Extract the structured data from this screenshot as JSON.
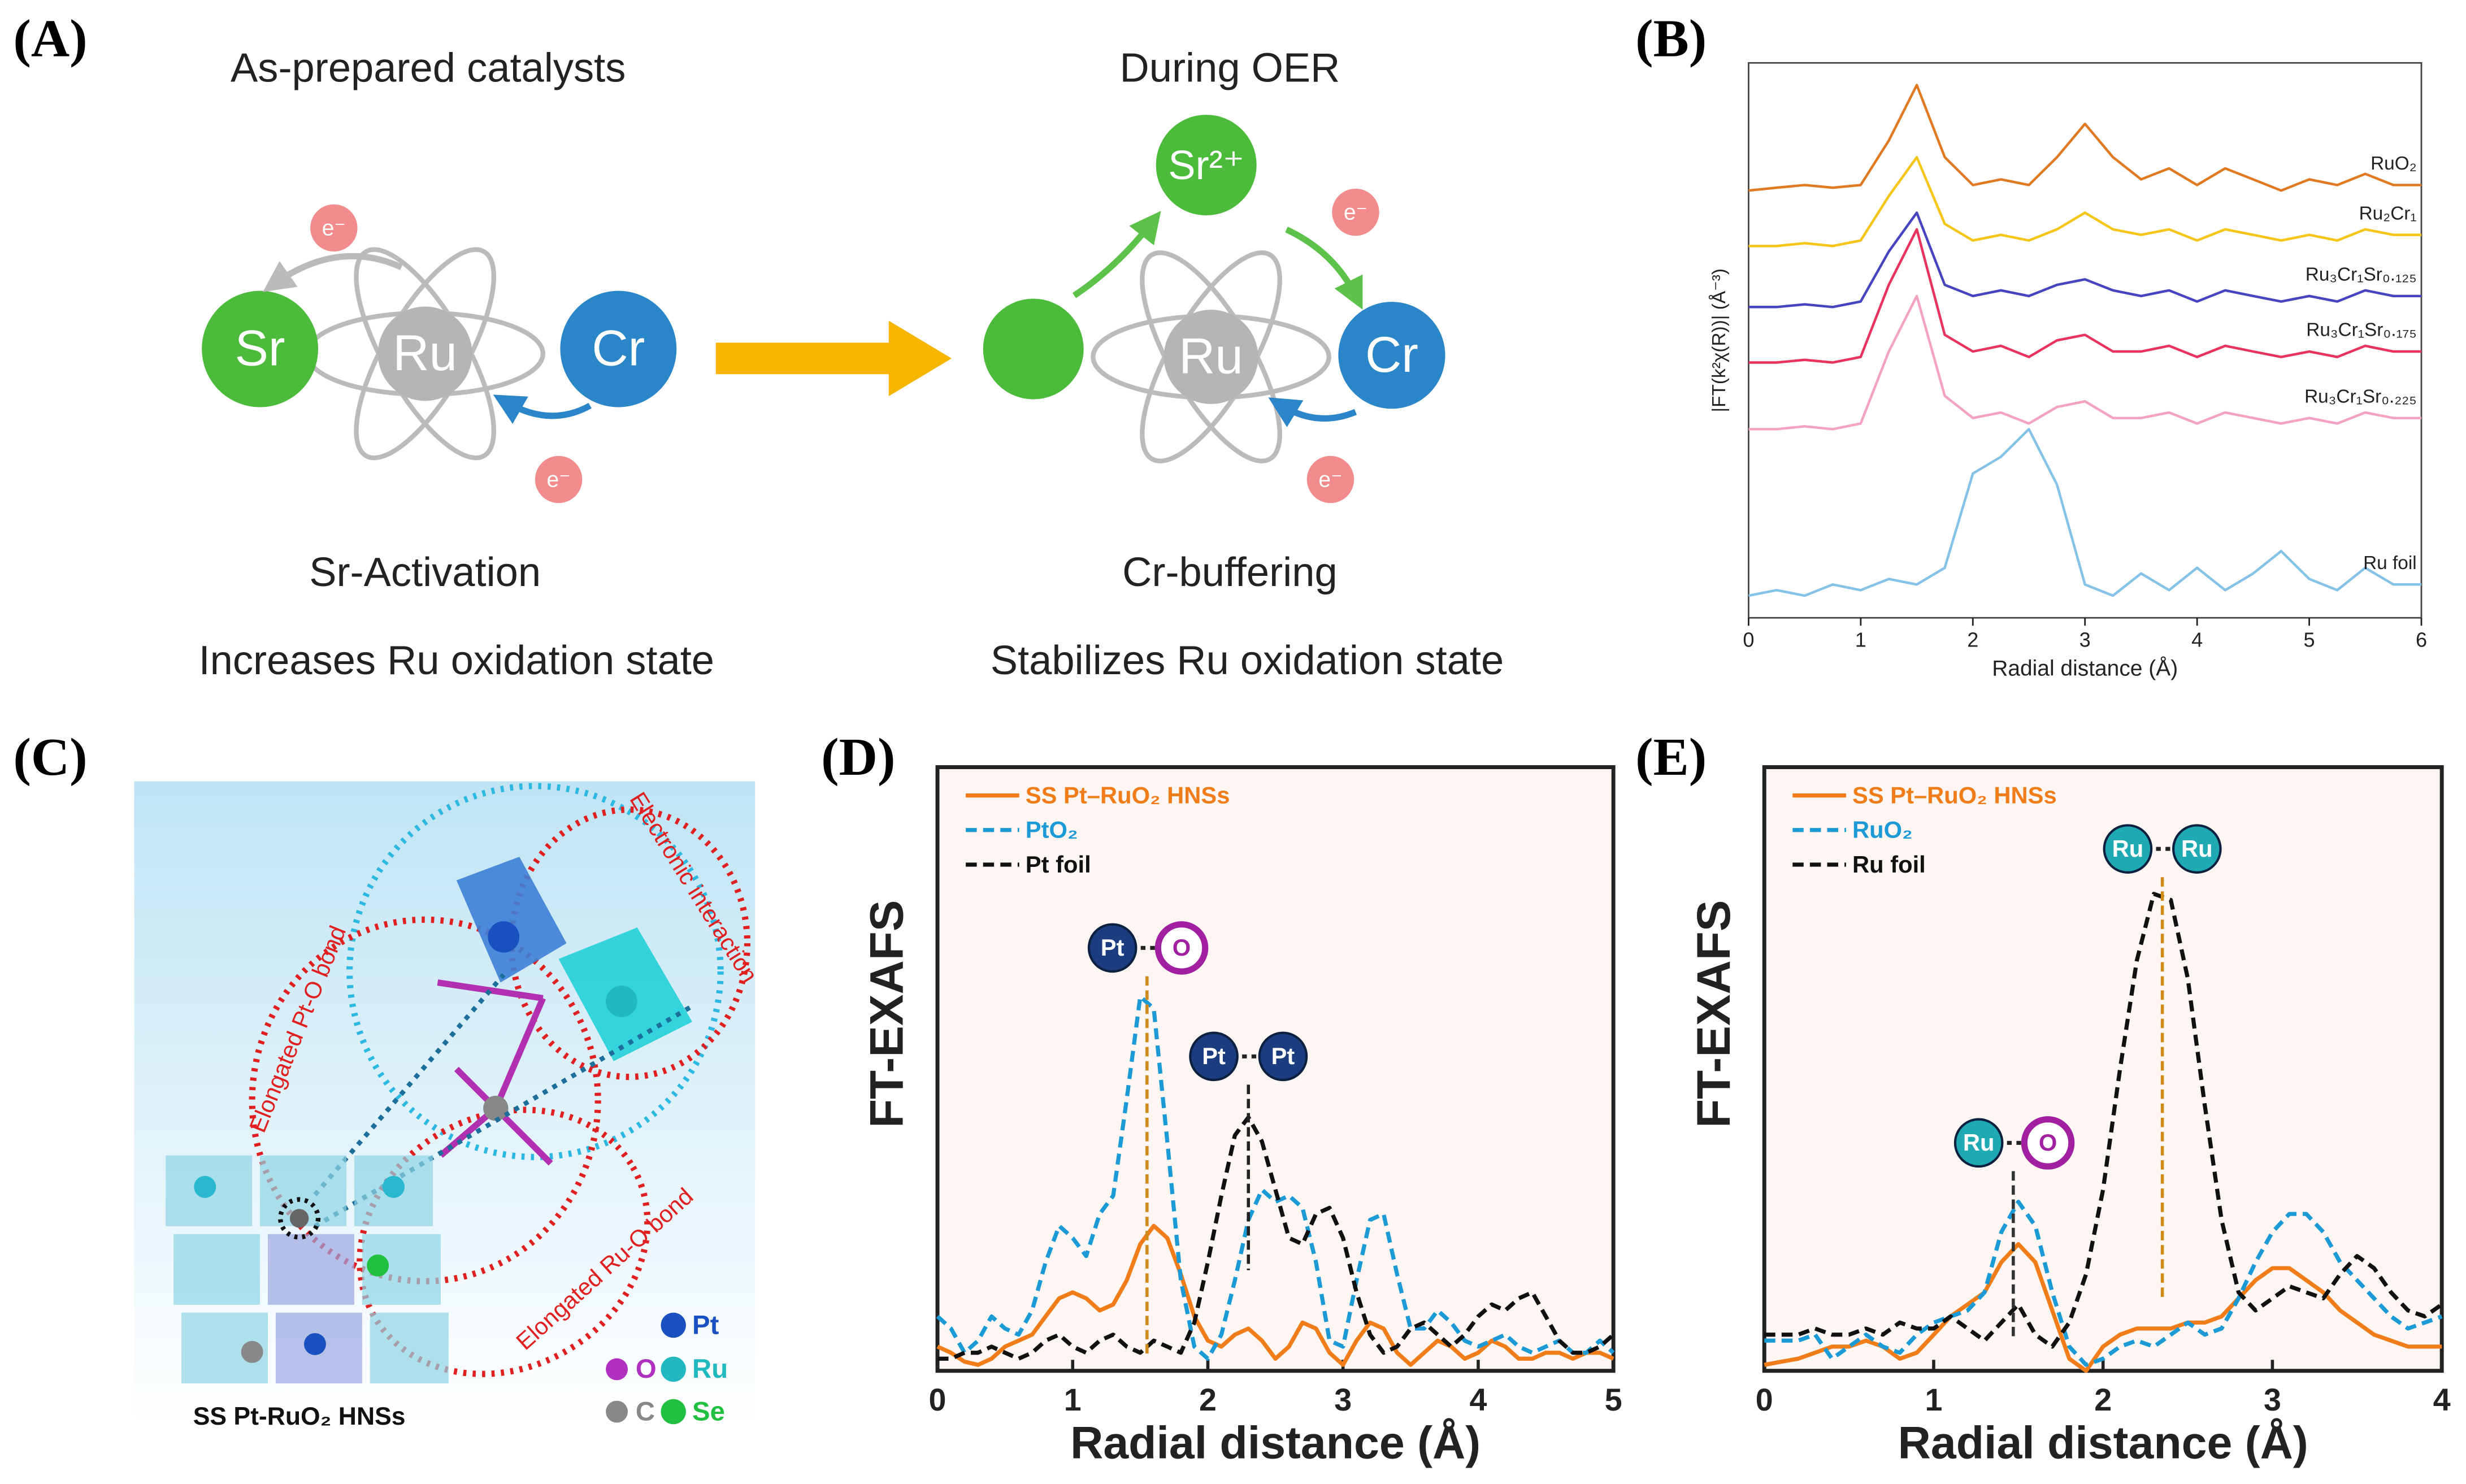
{
  "panels": {
    "a": "(A)",
    "b": "(B)",
    "c": "(C)",
    "d": "(D)",
    "e": "(E)"
  },
  "diagram_a": {
    "left_title": "As-prepared catalysts",
    "right_title": "During OER",
    "left_caption": "Sr-Activation",
    "left_subcaption": "Increases Ru oxidation state",
    "right_caption": "Cr-buffering",
    "right_subcaption": "Stabilizes Ru oxidation state",
    "sr": "Sr",
    "ru_left": "Ru",
    "cr_left": "Cr",
    "ru_right": "Ru",
    "cr_right": "Cr",
    "sr_ion": "Sr²⁺",
    "electrons": [
      "e⁻",
      "e⁻",
      "e⁻",
      "e⁻"
    ]
  },
  "diagram_c": {
    "electronic": "Electronic interaction",
    "pt_o": "Elongated Pt-O bond",
    "ru_o": "Elongated Ru-O bond",
    "caption": "SS Pt-RuO₂ HNSs",
    "legend": [
      "Pt",
      "O",
      "Ru",
      "C",
      "Se"
    ]
  },
  "chart_data": [
    {
      "type": "line",
      "xlabel": "Radial distance (Å)",
      "ylabel": "|FT(k²χ(R))| (Å⁻³)",
      "xlim": [
        0,
        6
      ],
      "xticks": [
        0,
        1,
        2,
        3,
        4,
        5,
        6
      ],
      "ylim": [
        0,
        10
      ],
      "x": [
        0,
        0.25,
        0.5,
        0.75,
        1,
        1.25,
        1.5,
        1.75,
        2,
        2.25,
        2.5,
        2.75,
        3,
        3.25,
        3.5,
        3.75,
        4,
        4.25,
        4.5,
        4.75,
        5,
        5.25,
        5.5,
        5.75,
        6
      ],
      "series": [
        {
          "name": "RuO₂",
          "color": "#e07a22",
          "style": "solid",
          "values": [
            7.7,
            7.75,
            7.8,
            7.75,
            7.8,
            8.6,
            9.6,
            8.3,
            7.8,
            7.9,
            7.8,
            8.3,
            8.9,
            8.3,
            7.9,
            8.1,
            7.8,
            8.1,
            7.9,
            7.7,
            7.9,
            7.8,
            8.0,
            7.8,
            7.8
          ]
        },
        {
          "name": "Ru₂Cr₁",
          "color": "#f5c518",
          "style": "solid",
          "values": [
            6.7,
            6.7,
            6.75,
            6.7,
            6.8,
            7.6,
            8.3,
            7.1,
            6.8,
            6.9,
            6.8,
            7.0,
            7.3,
            7.0,
            6.9,
            7.0,
            6.8,
            7.0,
            6.9,
            6.8,
            6.9,
            6.8,
            7.0,
            6.9,
            6.9
          ]
        },
        {
          "name": "Ru₃Cr₁Sr₀.₁₂₅",
          "color": "#4545c0",
          "style": "solid",
          "values": [
            5.6,
            5.6,
            5.65,
            5.6,
            5.7,
            6.6,
            7.3,
            6.0,
            5.8,
            5.9,
            5.8,
            6.0,
            6.1,
            5.9,
            5.8,
            5.9,
            5.7,
            5.9,
            5.8,
            5.7,
            5.8,
            5.7,
            5.9,
            5.8,
            5.8
          ]
        },
        {
          "name": "Ru₃Cr₁Sr₀.₁₇₅",
          "color": "#e8345c",
          "style": "solid",
          "values": [
            4.6,
            4.6,
            4.65,
            4.6,
            4.7,
            6.0,
            7.0,
            5.1,
            4.8,
            4.9,
            4.7,
            5.0,
            5.1,
            4.8,
            4.8,
            4.9,
            4.7,
            4.9,
            4.8,
            4.7,
            4.8,
            4.7,
            4.9,
            4.8,
            4.8
          ]
        },
        {
          "name": "Ru₃Cr₁Sr₀.₂₂₅",
          "color": "#f4a2c4",
          "style": "solid",
          "values": [
            3.4,
            3.4,
            3.45,
            3.4,
            3.5,
            4.8,
            5.8,
            4.0,
            3.6,
            3.7,
            3.5,
            3.8,
            3.9,
            3.6,
            3.6,
            3.7,
            3.5,
            3.7,
            3.6,
            3.5,
            3.6,
            3.5,
            3.7,
            3.6,
            3.6
          ]
        },
        {
          "name": "Ru foil",
          "color": "#84c2e8",
          "style": "solid",
          "values": [
            0.4,
            0.5,
            0.4,
            0.6,
            0.5,
            0.7,
            0.6,
            0.9,
            2.6,
            2.9,
            3.4,
            2.4,
            0.6,
            0.4,
            0.8,
            0.5,
            0.9,
            0.5,
            0.8,
            1.2,
            0.7,
            0.5,
            0.9,
            0.6,
            0.6
          ]
        }
      ]
    },
    {
      "type": "line",
      "xlabel": "Radial distance (Å)",
      "ylabel": "FT-EXAFS",
      "legend": "upper left",
      "xlim": [
        0,
        5
      ],
      "xticks": [
        0,
        1,
        2,
        3,
        4,
        5
      ],
      "ylim": [
        0,
        10
      ],
      "x": [
        0,
        0.1,
        0.2,
        0.3,
        0.4,
        0.5,
        0.6,
        0.7,
        0.8,
        0.9,
        1.0,
        1.1,
        1.2,
        1.3,
        1.4,
        1.5,
        1.6,
        1.7,
        1.8,
        1.9,
        2.0,
        2.1,
        2.2,
        2.3,
        2.4,
        2.5,
        2.6,
        2.7,
        2.8,
        2.9,
        3.0,
        3.1,
        3.2,
        3.3,
        3.4,
        3.5,
        3.6,
        3.7,
        3.8,
        3.9,
        4.0,
        4.1,
        4.2,
        4.3,
        4.4,
        4.5,
        4.6,
        4.7,
        4.8,
        4.9,
        5.0
      ],
      "series": [
        {
          "name": "SS Pt–RuO₂ HNSs",
          "color": "#f07d1a",
          "style": "solid",
          "values": [
            0.4,
            0.3,
            0.15,
            0.1,
            0.2,
            0.4,
            0.5,
            0.6,
            0.9,
            1.2,
            1.3,
            1.2,
            1.0,
            1.1,
            1.5,
            2.1,
            2.4,
            2.2,
            1.6,
            0.9,
            0.5,
            0.4,
            0.6,
            0.7,
            0.5,
            0.2,
            0.4,
            0.8,
            0.7,
            0.3,
            0.1,
            0.5,
            0.8,
            0.7,
            0.3,
            0.1,
            0.3,
            0.5,
            0.4,
            0.2,
            0.3,
            0.5,
            0.4,
            0.2,
            0.2,
            0.3,
            0.3,
            0.2,
            0.3,
            0.3,
            0.2
          ]
        },
        {
          "name": "PtO₂",
          "color": "#1c9ad6",
          "style": "dashed",
          "values": [
            0.9,
            0.7,
            0.3,
            0.5,
            0.9,
            0.7,
            0.6,
            1.0,
            1.8,
            2.4,
            2.2,
            1.9,
            2.6,
            2.9,
            4.5,
            6.2,
            6.0,
            3.8,
            1.5,
            0.4,
            0.2,
            0.6,
            1.5,
            2.5,
            3.0,
            2.8,
            2.9,
            2.7,
            1.8,
            0.5,
            0.4,
            1.5,
            2.5,
            2.6,
            1.6,
            0.7,
            0.7,
            1.0,
            0.8,
            0.5,
            0.4,
            0.5,
            0.6,
            0.4,
            0.3,
            0.4,
            0.5,
            0.3,
            0.3,
            0.5,
            0.3
          ]
        },
        {
          "name": "Pt foil",
          "color": "#111111",
          "style": "dashed",
          "values": [
            0.2,
            0.2,
            0.3,
            0.3,
            0.4,
            0.3,
            0.2,
            0.3,
            0.5,
            0.6,
            0.4,
            0.3,
            0.5,
            0.6,
            0.4,
            0.3,
            0.5,
            0.4,
            0.3,
            0.8,
            1.8,
            2.9,
            3.9,
            4.2,
            3.8,
            3.0,
            2.2,
            2.1,
            2.6,
            2.7,
            2.2,
            1.3,
            0.6,
            0.3,
            0.4,
            0.7,
            0.8,
            0.6,
            0.4,
            0.6,
            0.9,
            1.1,
            1.0,
            1.2,
            1.3,
            0.9,
            0.5,
            0.3,
            0.3,
            0.4,
            0.6
          ]
        }
      ],
      "annotations": [
        {
          "x": 1.55,
          "labels": [
            "Pt",
            "O"
          ],
          "colors": [
            "#1b3d80",
            "#ffffff"
          ]
        },
        {
          "x": 2.3,
          "labels": [
            "Pt",
            "Pt"
          ],
          "colors": [
            "#1b3d80",
            "#1b3d80"
          ]
        }
      ]
    },
    {
      "type": "line",
      "xlabel": "Radial distance (Å)",
      "ylabel": "FT-EXAFS",
      "legend": "upper left",
      "xlim": [
        0,
        4
      ],
      "xticks": [
        0,
        1,
        2,
        3,
        4
      ],
      "ylim": [
        0,
        10
      ],
      "x": [
        0,
        0.1,
        0.2,
        0.3,
        0.4,
        0.5,
        0.6,
        0.7,
        0.8,
        0.9,
        1.0,
        1.1,
        1.2,
        1.3,
        1.4,
        1.5,
        1.6,
        1.7,
        1.8,
        1.9,
        2.0,
        2.1,
        2.2,
        2.3,
        2.4,
        2.5,
        2.6,
        2.7,
        2.8,
        2.9,
        3.0,
        3.1,
        3.2,
        3.3,
        3.4,
        3.5,
        3.6,
        3.7,
        3.8,
        3.9,
        4.0
      ],
      "series": [
        {
          "name": "SS Pt–RuO₂ HNSs",
          "color": "#f07d1a",
          "style": "solid",
          "values": [
            0.1,
            0.15,
            0.2,
            0.3,
            0.4,
            0.4,
            0.5,
            0.4,
            0.2,
            0.3,
            0.6,
            0.9,
            1.1,
            1.3,
            1.8,
            2.1,
            1.8,
            1.0,
            0.2,
            0.0,
            0.4,
            0.6,
            0.7,
            0.7,
            0.7,
            0.8,
            0.8,
            0.9,
            1.2,
            1.5,
            1.7,
            1.7,
            1.5,
            1.3,
            1.0,
            0.8,
            0.6,
            0.5,
            0.4,
            0.4,
            0.4
          ]
        },
        {
          "name": "RuO₂",
          "color": "#1c9ad6",
          "style": "dashed",
          "values": [
            0.5,
            0.5,
            0.5,
            0.6,
            0.2,
            0.4,
            0.6,
            0.4,
            0.3,
            0.6,
            0.8,
            0.9,
            1.0,
            1.3,
            2.3,
            2.8,
            2.4,
            1.3,
            0.4,
            0.1,
            0.2,
            0.4,
            0.5,
            0.4,
            0.6,
            0.8,
            0.6,
            0.7,
            1.2,
            1.8,
            2.3,
            2.6,
            2.6,
            2.3,
            1.8,
            1.5,
            1.2,
            0.9,
            0.7,
            0.8,
            0.9
          ]
        },
        {
          "name": "Ru foil",
          "color": "#111111",
          "style": "dashed",
          "values": [
            0.6,
            0.6,
            0.6,
            0.7,
            0.6,
            0.6,
            0.7,
            0.6,
            0.8,
            0.7,
            0.7,
            0.9,
            0.7,
            0.5,
            0.8,
            1.1,
            0.6,
            0.4,
            0.8,
            1.6,
            3.0,
            5.0,
            6.8,
            7.9,
            7.8,
            6.5,
            4.4,
            2.5,
            1.3,
            1.0,
            1.2,
            1.4,
            1.3,
            1.2,
            1.6,
            1.9,
            1.7,
            1.3,
            1.0,
            0.9,
            1.1
          ]
        }
      ],
      "annotations": [
        {
          "x": 1.47,
          "labels": [
            "Ru",
            "O"
          ],
          "colors": [
            "#1fa9b2",
            "#ffffff"
          ]
        },
        {
          "x": 2.35,
          "labels": [
            "Ru",
            "Ru"
          ],
          "colors": [
            "#1fa9b2",
            "#1fa9b2"
          ]
        }
      ]
    }
  ]
}
